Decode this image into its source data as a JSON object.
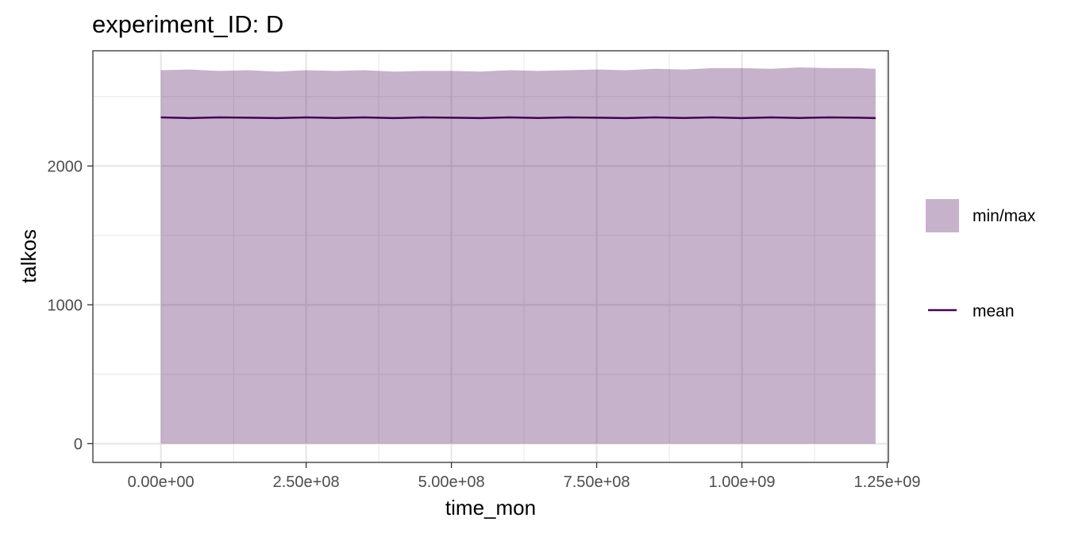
{
  "chart_data": {
    "type": "area",
    "title": "experiment_ID: D",
    "xlabel": "time_mon",
    "ylabel": "talkos",
    "xlim": [
      -117000000,
      1252000000
    ],
    "ylim": [
      -135,
      2830
    ],
    "x_ticks": [
      {
        "value": 0,
        "label": "0.00e+00"
      },
      {
        "value": 250000000,
        "label": "2.50e+08"
      },
      {
        "value": 500000000,
        "label": "5.00e+08"
      },
      {
        "value": 750000000,
        "label": "7.50e+08"
      },
      {
        "value": 1000000000,
        "label": "1.00e+09"
      },
      {
        "value": 1250000000,
        "label": "1.25e+09"
      }
    ],
    "y_ticks": [
      {
        "value": 0,
        "label": "0"
      },
      {
        "value": 1000,
        "label": "1000"
      },
      {
        "value": 2000,
        "label": "2000"
      }
    ],
    "grid": true,
    "legend_position": "right",
    "series": [
      {
        "name": "min/max",
        "kind": "ribbon",
        "color": "#440154",
        "opacity": 0.3,
        "x": [
          0,
          50000000,
          100000000,
          150000000,
          200000000,
          250000000,
          300000000,
          350000000,
          400000000,
          450000000,
          500000000,
          550000000,
          600000000,
          650000000,
          700000000,
          750000000,
          800000000,
          850000000,
          900000000,
          950000000,
          1000000000,
          1050000000,
          1100000000,
          1150000000,
          1200000000,
          1230000000
        ],
        "ymin": [
          0,
          0,
          0,
          0,
          0,
          0,
          0,
          0,
          0,
          0,
          0,
          0,
          0,
          0,
          0,
          0,
          0,
          0,
          0,
          0,
          0,
          0,
          0,
          0,
          0,
          0
        ],
        "ymax": [
          2690,
          2695,
          2685,
          2690,
          2680,
          2690,
          2685,
          2690,
          2680,
          2685,
          2685,
          2680,
          2690,
          2685,
          2690,
          2695,
          2690,
          2700,
          2695,
          2705,
          2705,
          2700,
          2710,
          2705,
          2705,
          2700
        ]
      },
      {
        "name": "mean",
        "kind": "line",
        "color": "#440154",
        "x": [
          0,
          50000000,
          100000000,
          150000000,
          200000000,
          250000000,
          300000000,
          350000000,
          400000000,
          450000000,
          500000000,
          550000000,
          600000000,
          650000000,
          700000000,
          750000000,
          800000000,
          850000000,
          900000000,
          950000000,
          1000000000,
          1050000000,
          1100000000,
          1150000000,
          1200000000,
          1230000000
        ],
        "y": [
          2350,
          2345,
          2350,
          2348,
          2345,
          2350,
          2346,
          2350,
          2345,
          2350,
          2348,
          2345,
          2350,
          2346,
          2350,
          2348,
          2345,
          2350,
          2346,
          2350,
          2345,
          2350,
          2346,
          2350,
          2348,
          2345
        ]
      }
    ]
  }
}
